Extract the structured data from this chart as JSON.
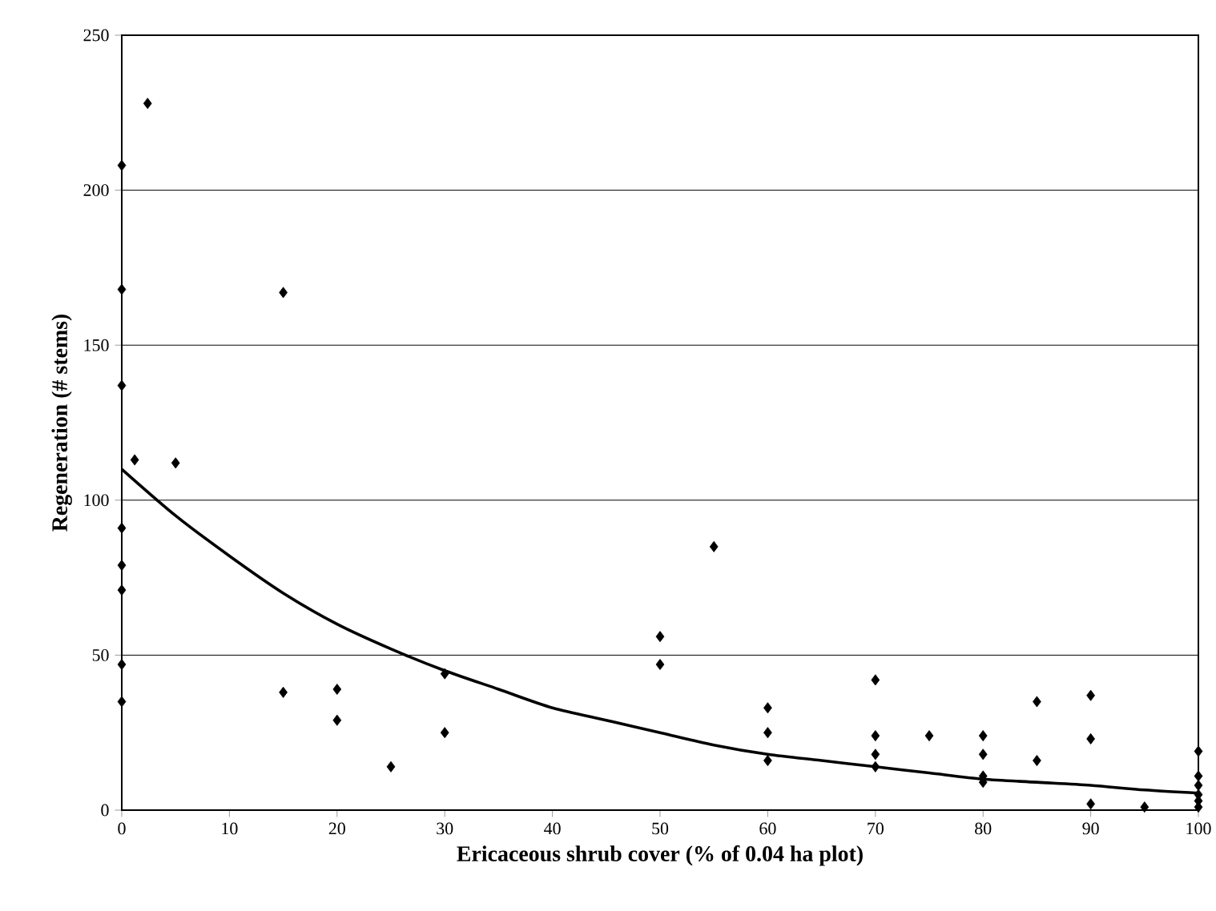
{
  "chart_data": {
    "type": "scatter",
    "xlabel": "Ericaceous shrub cover (% of 0.04 ha plot)",
    "ylabel": "Regeneration (# stems)",
    "xlim": [
      0,
      100
    ],
    "ylim": [
      0,
      250
    ],
    "xticks": [
      0,
      10,
      20,
      30,
      40,
      50,
      60,
      70,
      80,
      90,
      100
    ],
    "yticks": [
      0,
      50,
      100,
      150,
      200,
      250
    ],
    "grid": "y",
    "marker": "diamond",
    "series": [
      {
        "color": "#000000",
        "x": [
          0,
          0,
          0,
          0,
          0,
          0,
          0,
          0,
          1.2,
          2.4,
          5,
          15,
          15,
          20,
          20,
          25,
          30,
          30,
          50,
          50,
          55,
          60,
          60,
          60,
          70,
          70,
          70,
          70,
          75,
          80,
          80,
          80,
          80,
          85,
          85,
          90,
          90,
          90,
          95,
          100,
          100,
          100,
          100,
          100,
          100
        ],
        "values": [
          208,
          168,
          137,
          91,
          79,
          71,
          47,
          35,
          113,
          228,
          112,
          167,
          38,
          39,
          29,
          14,
          44,
          25,
          56,
          47,
          85,
          33,
          25,
          16,
          42,
          24,
          18,
          14,
          24,
          24,
          18,
          11,
          9,
          35,
          16,
          37,
          23,
          2,
          1,
          19,
          11,
          8,
          5,
          3,
          1
        ]
      },
      {
        "type": "line",
        "color": "#000000",
        "marker": "none",
        "x": [
          0,
          5,
          10,
          15,
          20,
          25,
          30,
          35,
          40,
          45,
          50,
          55,
          60,
          65,
          70,
          75,
          80,
          85,
          90,
          95,
          100
        ],
        "values": [
          110,
          95,
          82,
          70,
          60,
          52,
          45,
          39,
          33,
          29,
          25,
          21,
          18,
          16,
          14,
          12,
          10,
          9,
          8,
          6.5,
          5.5
        ]
      }
    ]
  }
}
